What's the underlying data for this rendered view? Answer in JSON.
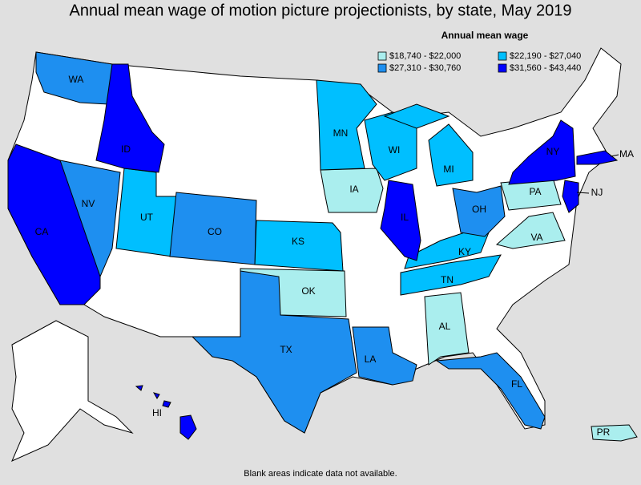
{
  "title": "Annual mean wage of motion picture projectionists, by state, May 2019",
  "legend": {
    "title": "Annual mean wage",
    "items": [
      {
        "label": "$18,740 - $22,000",
        "color": "#aaeeee",
        "states": [
          "IA",
          "PA",
          "VA",
          "OK",
          "AL",
          "PR"
        ]
      },
      {
        "label": "$22,190 - $27,040",
        "color": "#00bfff",
        "states": [
          "MN",
          "WI",
          "MI",
          "UT",
          "KS",
          "KY",
          "TN"
        ]
      },
      {
        "label": "$27,310 - $30,760",
        "color": "#1e8ff0",
        "states": [
          "WA",
          "NV",
          "CO",
          "OH",
          "TX",
          "LA",
          "FL"
        ]
      },
      {
        "label": "$31,560 - $43,440",
        "color": "#0000ff",
        "states": [
          "ID",
          "CA",
          "IL",
          "NY",
          "NJ",
          "MA",
          "HI"
        ]
      }
    ]
  },
  "note": "Blank areas indicate data not available."
}
